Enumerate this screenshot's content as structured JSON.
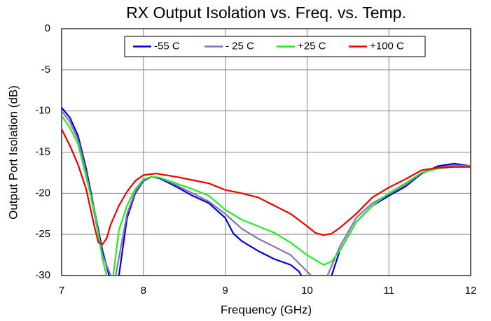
{
  "chart_data": {
    "type": "line",
    "title": "RX Output Isolation vs. Freq. vs. Temp.",
    "x_label": "Frequency (GHz)",
    "y_label": "Output Port Isolation (dB)",
    "xlim": [
      7,
      12
    ],
    "ylim": [
      -30,
      0
    ],
    "xticks": [
      7,
      8,
      9,
      10,
      11,
      12
    ],
    "yticks": [
      0,
      -5,
      -10,
      -15,
      -20,
      -25,
      -30
    ],
    "grid": true,
    "legend": "top",
    "series": [
      {
        "name": "-55 C",
        "color": "#0000dd",
        "x": [
          7,
          7.1,
          7.2,
          7.3,
          7.4,
          7.5,
          7.58,
          7.64,
          7.7,
          7.8,
          7.9,
          8.0,
          8.1,
          8.2,
          8.4,
          8.6,
          8.8,
          9.0,
          9.1,
          9.2,
          9.4,
          9.6,
          9.8,
          9.9,
          9.93,
          10.1,
          10.3,
          10.4,
          10.6,
          10.8,
          11.0,
          11.2,
          11.4,
          11.6,
          11.8,
          12.0
        ],
        "values": [
          -9.6,
          -10.8,
          -13,
          -17,
          -22,
          -27,
          -30,
          null,
          -30,
          -23,
          -20,
          -18.5,
          -18.0,
          -18.2,
          -19.2,
          -20.3,
          -21.2,
          -23,
          -24.9,
          -25.8,
          -27,
          -28,
          -28.7,
          -29.5,
          -30,
          null,
          -30,
          -27,
          -23.5,
          -21.5,
          -20.3,
          -19.2,
          -17.6,
          -16.7,
          -16.4,
          -16.7
        ]
      },
      {
        "name": "- 25 C",
        "color": "#8a70b8",
        "x": [
          7,
          7.1,
          7.2,
          7.3,
          7.4,
          7.5,
          7.6,
          7.63,
          7.66,
          7.8,
          7.9,
          8.0,
          8.1,
          8.2,
          8.4,
          8.6,
          8.8,
          9.0,
          9.2,
          9.4,
          9.6,
          9.8,
          10.0,
          10.05,
          10.15,
          10.25,
          10.4,
          10.6,
          10.8,
          11.0,
          11.2,
          11.4,
          11.6,
          11.8,
          12.0
        ],
        "values": [
          -10,
          -11.3,
          -13.5,
          -17.5,
          -22.5,
          -27.5,
          -30,
          null,
          -30,
          -22.5,
          -19.8,
          -18.4,
          -18.0,
          -18.1,
          -19,
          -20,
          -21,
          -22.5,
          -24.3,
          -25.5,
          -26.5,
          -27.5,
          -29.5,
          -30,
          null,
          -30,
          -26.5,
          -23,
          -21.2,
          -20.1,
          -19,
          -17.5,
          -16.9,
          -16.6,
          -16.7
        ]
      },
      {
        "name": "+25 C",
        "color": "#22ee22",
        "x": [
          7,
          7.1,
          7.2,
          7.3,
          7.4,
          7.5,
          7.55,
          7.59,
          7.63,
          7.7,
          7.8,
          7.9,
          8.0,
          8.1,
          8.2,
          8.4,
          8.6,
          8.8,
          9.0,
          9.2,
          9.4,
          9.6,
          9.8,
          10.0,
          10.2,
          10.3,
          10.4,
          10.6,
          10.8,
          11.0,
          11.2,
          11.4,
          11.6,
          11.8,
          12.0
        ],
        "values": [
          -10.6,
          -12,
          -14,
          -18,
          -22,
          -28,
          -30,
          null,
          -30,
          -24.5,
          -21.5,
          -19.5,
          -18.3,
          -18.0,
          -18.1,
          -18.8,
          -19.5,
          -20.3,
          -22,
          -23.2,
          -24,
          -24.8,
          -26,
          -27.5,
          -28.7,
          -28.3,
          -27,
          -23.5,
          -21.5,
          -20,
          -18.8,
          -17.5,
          -17,
          -16.8,
          -16.8
        ]
      },
      {
        "name": "+100 C",
        "color": "#ee0000",
        "x": [
          7,
          7.1,
          7.2,
          7.3,
          7.4,
          7.45,
          7.5,
          7.55,
          7.6,
          7.7,
          7.8,
          7.9,
          8.0,
          8.15,
          8.4,
          8.6,
          8.8,
          9.0,
          9.2,
          9.4,
          9.6,
          9.8,
          10.0,
          10.1,
          10.2,
          10.3,
          10.4,
          10.6,
          10.8,
          11.0,
          11.2,
          11.4,
          11.6,
          11.8,
          12.0
        ],
        "values": [
          -12.2,
          -14.2,
          -16.5,
          -19.5,
          -24,
          -26,
          -26.2,
          -25.5,
          -23.8,
          -21.5,
          -19.8,
          -18.5,
          -17.8,
          -17.6,
          -18,
          -18.4,
          -18.8,
          -19.6,
          -20,
          -20.5,
          -21.5,
          -22.5,
          -24,
          -24.8,
          -25.1,
          -24.9,
          -24.2,
          -22.5,
          -20.5,
          -19.3,
          -18.3,
          -17.2,
          -16.9,
          -16.8,
          -16.8
        ]
      }
    ]
  }
}
